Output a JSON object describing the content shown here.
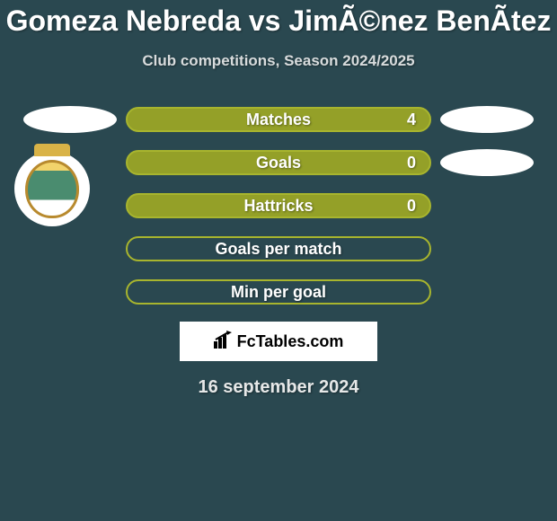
{
  "title": "Gomeza Nebreda vs JimÃ©nez BenÃ­tez",
  "subtitle": "Club competitions, Season 2024/2025",
  "stats": [
    {
      "label": "Matches",
      "value_left": "",
      "value_right": "4",
      "border_color": "#a8b52e",
      "bg_color": "#94a028",
      "has_left_logo": true,
      "has_right_logo": true
    },
    {
      "label": "Goals",
      "value_left": "",
      "value_right": "0",
      "border_color": "#a8b52e",
      "bg_color": "#94a028",
      "has_left_logo": false,
      "has_right_logo": true
    },
    {
      "label": "Hattricks",
      "value_left": "",
      "value_right": "0",
      "border_color": "#a8b52e",
      "bg_color": "#94a028",
      "has_left_logo": false,
      "has_right_logo": false
    },
    {
      "label": "Goals per match",
      "value_left": "",
      "value_right": "",
      "border_color": "#a8b52e",
      "bg_color": "#2a4850",
      "has_left_logo": false,
      "has_right_logo": false
    },
    {
      "label": "Min per goal",
      "value_left": "",
      "value_right": "",
      "border_color": "#a8b52e",
      "bg_color": "#2a4850",
      "has_left_logo": false,
      "has_right_logo": false
    }
  ],
  "fctables_label": "FcTables.com",
  "date_label": "16 september 2024",
  "styling": {
    "background_color": "#2a4850",
    "title_color": "#ffffff",
    "title_fontsize": 32,
    "subtitle_color": "#d8dcdd",
    "subtitle_fontsize": 17,
    "stat_bar_width": 340,
    "stat_bar_height": 28,
    "stat_bar_radius": 14,
    "side_ellipse_width": 104,
    "side_ellipse_height": 30,
    "stat_font_color": "#ffffff",
    "stat_fontsize": 18,
    "fctables_bg": "#ffffff",
    "fctables_width": 220,
    "fctables_height": 44,
    "date_color": "#e6e8e8",
    "date_fontsize": 20
  }
}
